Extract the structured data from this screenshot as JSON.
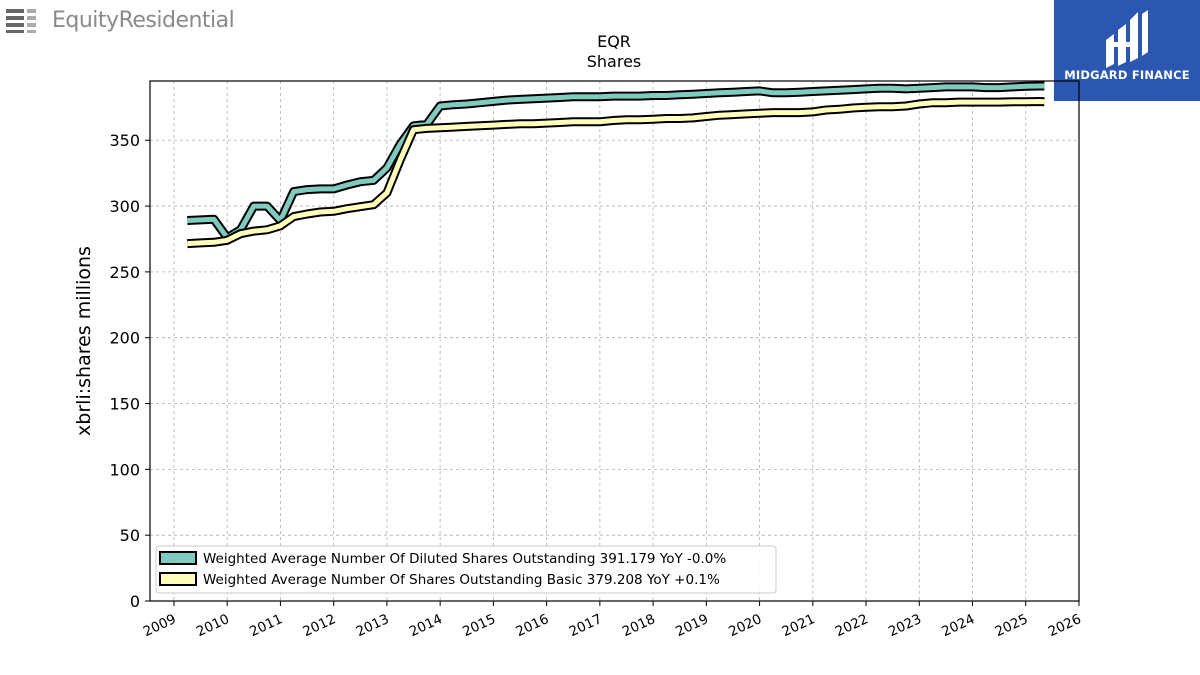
{
  "brand": {
    "name": "EquityResidential"
  },
  "badge": {
    "name": "MIDGARD FINANCE",
    "bg_color": "#2c57b0"
  },
  "chart_data": {
    "type": "line",
    "title": "EQR",
    "subtitle": "Shares",
    "ylabel": "xbrli:shares millions",
    "xlabel": "",
    "ylim": [
      0,
      395
    ],
    "xlim": [
      2008.55,
      2026
    ],
    "yticks": [
      0,
      50,
      100,
      150,
      200,
      250,
      300,
      350
    ],
    "xticks": [
      2009,
      2010,
      2011,
      2012,
      2013,
      2014,
      2015,
      2016,
      2017,
      2018,
      2019,
      2020,
      2021,
      2022,
      2023,
      2024,
      2025,
      2026
    ],
    "grid": true,
    "legend_position": "lower-left",
    "series": [
      {
        "name": "Weighted Average Number Of Diluted Shares Outstanding",
        "legend_label": "Weighted Average Number Of Diluted Shares Outstanding  391.179 YoY -0.0%",
        "color": "#80cbc0",
        "x": [
          2009.25,
          2009.5,
          2009.75,
          2010.0,
          2010.25,
          2010.5,
          2010.75,
          2011.0,
          2011.25,
          2011.5,
          2011.75,
          2012.0,
          2012.25,
          2012.5,
          2012.75,
          2013.0,
          2013.25,
          2013.5,
          2013.75,
          2014.0,
          2014.25,
          2014.5,
          2014.75,
          2015.0,
          2015.25,
          2015.5,
          2015.75,
          2016.0,
          2016.25,
          2016.5,
          2016.75,
          2017.0,
          2017.25,
          2017.5,
          2017.75,
          2018.0,
          2018.25,
          2018.5,
          2018.75,
          2019.0,
          2019.25,
          2019.5,
          2019.75,
          2020.0,
          2020.25,
          2020.5,
          2020.75,
          2021.0,
          2021.25,
          2021.5,
          2021.75,
          2022.0,
          2022.25,
          2022.5,
          2022.75,
          2023.0,
          2023.25,
          2023.5,
          2023.75,
          2024.0,
          2024.25,
          2024.5,
          2024.75,
          2025.0,
          2025.25,
          2025.35
        ],
        "values": [
          289,
          289.5,
          290,
          276,
          282,
          300,
          300,
          289,
          311,
          312.5,
          313,
          313,
          316,
          318.5,
          319.5,
          329,
          347,
          361,
          362,
          376,
          377,
          377.5,
          378.5,
          379.5,
          380.5,
          381,
          381.5,
          382,
          382.5,
          383,
          383,
          383,
          383.5,
          383.5,
          383.5,
          384,
          384,
          384.5,
          385,
          385.5,
          386,
          386.5,
          387,
          387.5,
          386,
          386,
          386.5,
          387,
          387.5,
          388,
          388.5,
          389,
          389.5,
          389.5,
          389,
          389.5,
          390,
          390.5,
          390.5,
          390.5,
          390,
          390,
          390.5,
          391,
          391.2,
          391.179
        ]
      },
      {
        "name": "Weighted Average Number Of Shares Outstanding Basic",
        "legend_label": "Weighted Average Number Of Shares Outstanding Basic  379.208 YoY +0.1%",
        "color": "#ffffbb",
        "x": [
          2009.25,
          2009.5,
          2009.75,
          2010.0,
          2010.25,
          2010.5,
          2010.75,
          2011.0,
          2011.25,
          2011.5,
          2011.75,
          2012.0,
          2012.25,
          2012.5,
          2012.75,
          2013.0,
          2013.25,
          2013.5,
          2013.75,
          2014.0,
          2014.25,
          2014.5,
          2014.75,
          2015.0,
          2015.25,
          2015.5,
          2015.75,
          2016.0,
          2016.25,
          2016.5,
          2016.75,
          2017.0,
          2017.25,
          2017.5,
          2017.75,
          2018.0,
          2018.25,
          2018.5,
          2018.75,
          2019.0,
          2019.25,
          2019.5,
          2019.75,
          2020.0,
          2020.25,
          2020.5,
          2020.75,
          2021.0,
          2021.25,
          2021.5,
          2021.75,
          2022.0,
          2022.25,
          2022.5,
          2022.75,
          2023.0,
          2023.25,
          2023.5,
          2023.75,
          2024.0,
          2024.25,
          2024.5,
          2024.75,
          2025.0,
          2025.25,
          2025.35
        ],
        "values": [
          271.5,
          272,
          272.5,
          274,
          279,
          281,
          282,
          285,
          292,
          294,
          295.5,
          296,
          298,
          299.5,
          301,
          310,
          335,
          358,
          359,
          359.5,
          360,
          360.5,
          361,
          361.5,
          362,
          362.5,
          362.5,
          363,
          363.5,
          364,
          364,
          364,
          365,
          365.5,
          365.5,
          366,
          366.5,
          366.5,
          367,
          368,
          369,
          369.5,
          370,
          370.5,
          371,
          371,
          371,
          371.5,
          373,
          373.5,
          374.5,
          375,
          375.5,
          375.5,
          376,
          377.5,
          378.5,
          378.5,
          379,
          379,
          379,
          379,
          379.2,
          379.3,
          379.4,
          379.208
        ]
      }
    ]
  }
}
